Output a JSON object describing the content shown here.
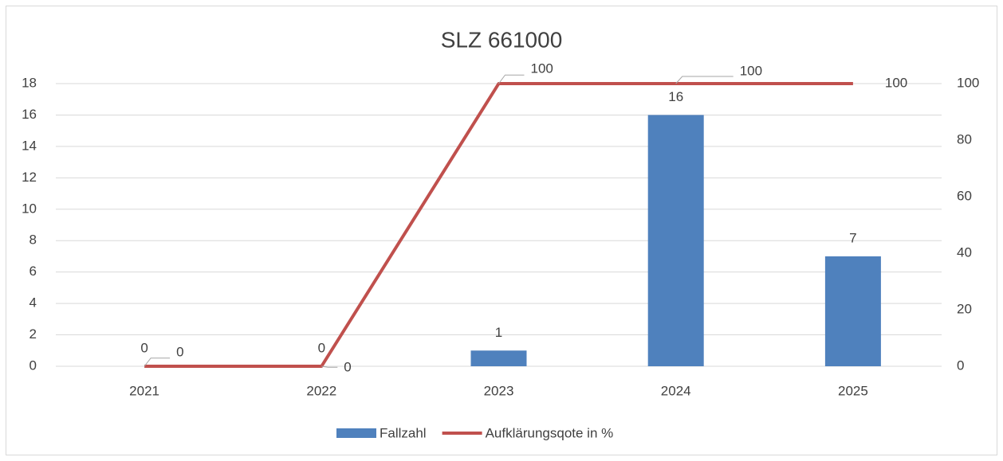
{
  "chart_data": {
    "type": "bar",
    "title": "SLZ 661000",
    "categories": [
      "2021",
      "2022",
      "2023",
      "2024",
      "2025"
    ],
    "series": [
      {
        "name": "Fallzahl",
        "type": "bar",
        "color": "#4f81bd",
        "values": [
          0,
          0,
          1,
          16,
          7
        ]
      },
      {
        "name": "Aufklärungsqote in %",
        "type": "line",
        "axis": "y2",
        "color": "#c0504d",
        "values": [
          0,
          0,
          100,
          100,
          100
        ]
      }
    ],
    "ylim": [
      0,
      18
    ],
    "yticks": [
      0,
      2,
      4,
      6,
      8,
      10,
      12,
      14,
      16,
      18
    ],
    "y2lim": [
      0,
      100
    ],
    "y2ticks": [
      0,
      20,
      40,
      60,
      80,
      100
    ],
    "grid": true,
    "legend": "bottom"
  }
}
